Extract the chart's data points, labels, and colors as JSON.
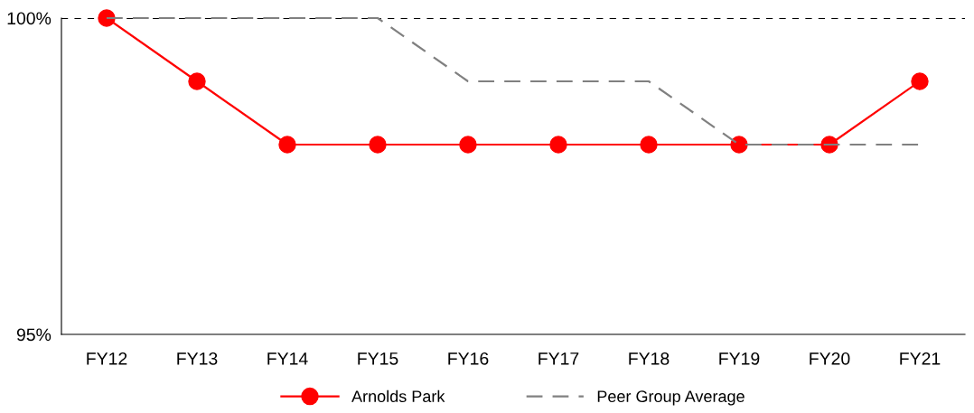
{
  "chart_data": {
    "type": "line",
    "categories": [
      "FY12",
      "FY13",
      "FY14",
      "FY15",
      "FY16",
      "FY17",
      "FY18",
      "FY19",
      "FY20",
      "FY21"
    ],
    "series": [
      {
        "name": "Arnolds Park",
        "color": "#ff0000",
        "marker": "circle",
        "line_style": "solid",
        "values": [
          100,
          99,
          98,
          98,
          98,
          98,
          98,
          98,
          98,
          99
        ]
      },
      {
        "name": "Peer Group Average",
        "color": "#808080",
        "marker": "none",
        "line_style": "dashed",
        "values": [
          100,
          100,
          100,
          100,
          99,
          99,
          99,
          98,
          98,
          98
        ]
      }
    ],
    "ylim": [
      95,
      100
    ],
    "yticks": [
      {
        "value": 95,
        "label": "95%"
      },
      {
        "value": 100,
        "label": "100%"
      }
    ],
    "ref_lines": [
      {
        "axis": "y",
        "value": 100,
        "color": "#000000",
        "line_style": "dashed"
      }
    ],
    "grid": false,
    "legend": "bottom"
  }
}
